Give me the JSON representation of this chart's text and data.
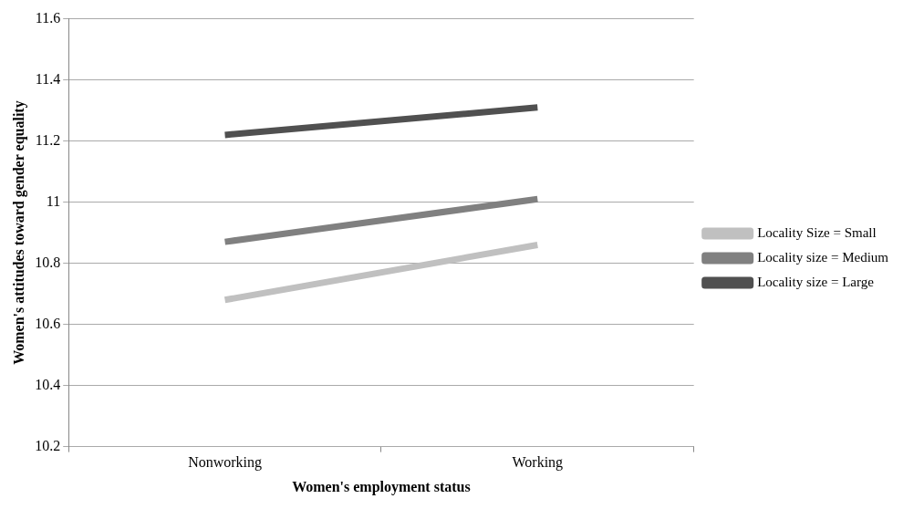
{
  "chart_data": {
    "type": "line",
    "xlabel": "Women's employment status",
    "ylabel": "Women's attitudes toward gender equality",
    "categories": [
      "Nonworking",
      "Working"
    ],
    "series": [
      {
        "name": "Locality Size = Small",
        "color": "#c0c0c0",
        "values": [
          10.68,
          10.86
        ]
      },
      {
        "name": "Locality size = Medium",
        "color": "#808080",
        "values": [
          10.87,
          11.01
        ]
      },
      {
        "name": "Locality size = Large",
        "color": "#505050",
        "values": [
          11.22,
          11.31
        ]
      }
    ],
    "ylim": [
      10.2,
      11.6
    ],
    "yticks": [
      10.2,
      10.4,
      10.6,
      10.8,
      11,
      11.2,
      11.4,
      11.6
    ],
    "grid": "y",
    "legend": "right",
    "marker": "none",
    "line_style": "solid"
  }
}
